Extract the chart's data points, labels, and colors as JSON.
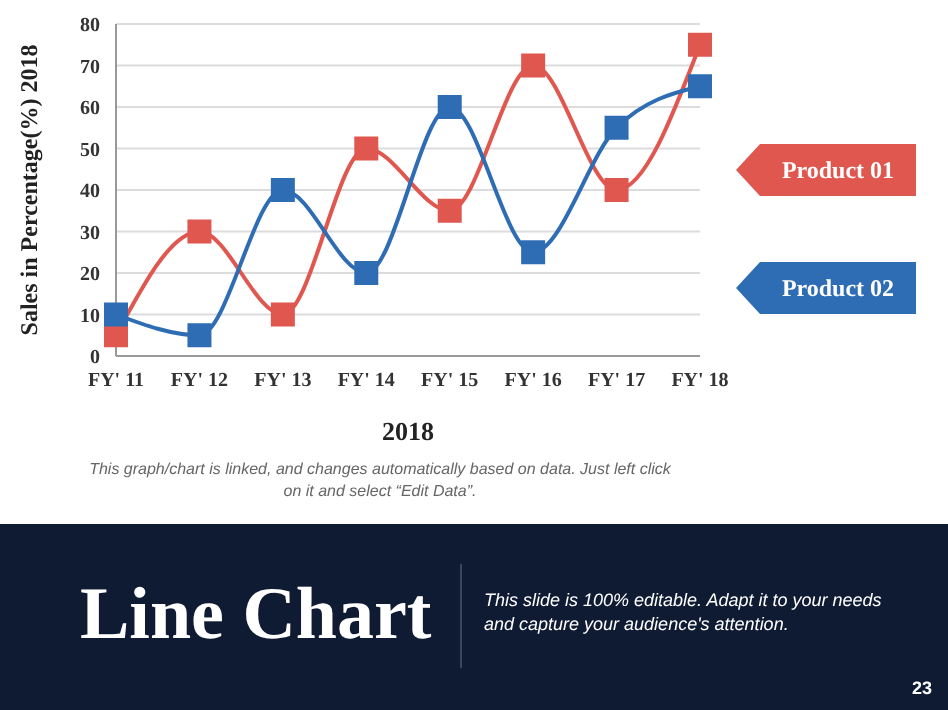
{
  "chart_data": {
    "type": "line",
    "title": "Line Chart",
    "subtitle": "This slide is 100% editable. Adapt it to your needs and capture your audience's attention.",
    "xlabel": "2018",
    "ylabel": "Sales in Percentage(%) 2018",
    "categories": [
      "FY' 11",
      "FY' 12",
      "FY' 13",
      "FY' 14",
      "FY' 15",
      "FY' 16",
      "FY' 17",
      "FY' 18"
    ],
    "series": [
      {
        "name": "Product 01",
        "color": "#e0574f",
        "values": [
          5,
          30,
          10,
          50,
          35,
          70,
          40,
          75
        ]
      },
      {
        "name": "Product 02",
        "color": "#2e6db4",
        "values": [
          10,
          5,
          40,
          20,
          60,
          25,
          55,
          65
        ]
      }
    ],
    "ylim": [
      0,
      80
    ],
    "yticks": [
      0,
      10,
      20,
      30,
      40,
      50,
      60,
      70,
      80
    ],
    "grid": "y",
    "legend": "right",
    "marker": "square",
    "line_style": "solid",
    "annotations": [
      "This graph/chart is linked, and changes automatically based on data. Just left click on it and select “Edit Data”.",
      "23"
    ]
  }
}
